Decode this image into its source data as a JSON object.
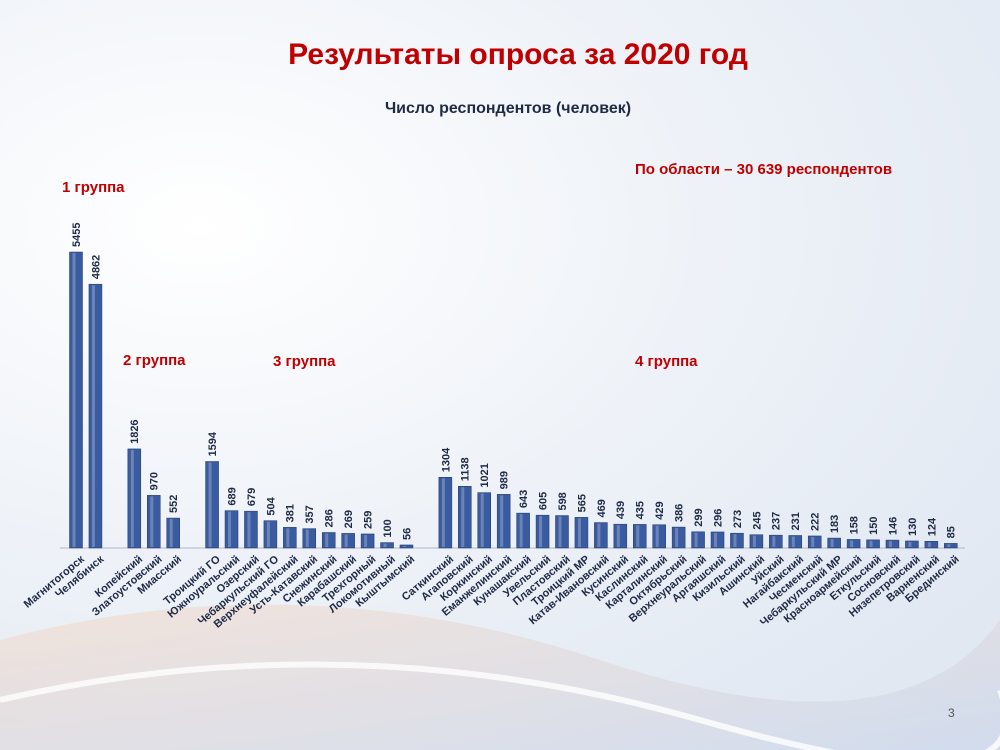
{
  "chart_data": {
    "type": "bar",
    "title": "Результаты опроса за 2020 год",
    "subtitle": "Число респондентов (человек)",
    "annotations": [
      "1 группа",
      "2 группа",
      "3 группа",
      "4 группа",
      "По области – 30 639 респондентов"
    ],
    "page_number": "3",
    "color": "#3a5ba0",
    "categories": [
      "Магнитогорск",
      "Челябинск",
      null,
      "Копейский",
      "Златоустовский",
      "Миасский",
      null,
      "Троицкий ГО",
      "Южноуральский",
      "Озерский",
      "Чебаркульский ГО",
      "Верхнеуфалейский",
      "Усть-Катавский",
      "Снежинский",
      "Карабашский",
      "Трехгорный",
      "Локомотивный",
      "Кыштымский",
      null,
      "Саткинский",
      "Агаповский",
      "Коркинский",
      "Еманжелинский",
      "Кунашакский",
      "Увельский",
      "Пластовский",
      "Троицкий МР",
      "Катав-Ивановский",
      "Кусинский",
      "Каслинский",
      "Карталинский",
      "Октябрьский",
      "Верхнеуральский",
      "Аргаяшский",
      "Кизильский",
      "Ашинский",
      "Уйский",
      "Нагайбакский",
      "Чесменский",
      "Чебаркульский МР",
      "Красноармейский",
      "Еткульский",
      "Сосновский",
      "Нязепетровский",
      "Варненский",
      "Брединский"
    ],
    "values": [
      5455,
      4862,
      null,
      1826,
      970,
      552,
      null,
      1594,
      689,
      679,
      504,
      381,
      357,
      286,
      269,
      259,
      100,
      56,
      null,
      1304,
      1138,
      1021,
      989,
      643,
      605,
      598,
      565,
      469,
      439,
      435,
      429,
      386,
      299,
      296,
      273,
      245,
      237,
      231,
      222,
      183,
      158,
      150,
      146,
      130,
      124,
      85
    ]
  }
}
